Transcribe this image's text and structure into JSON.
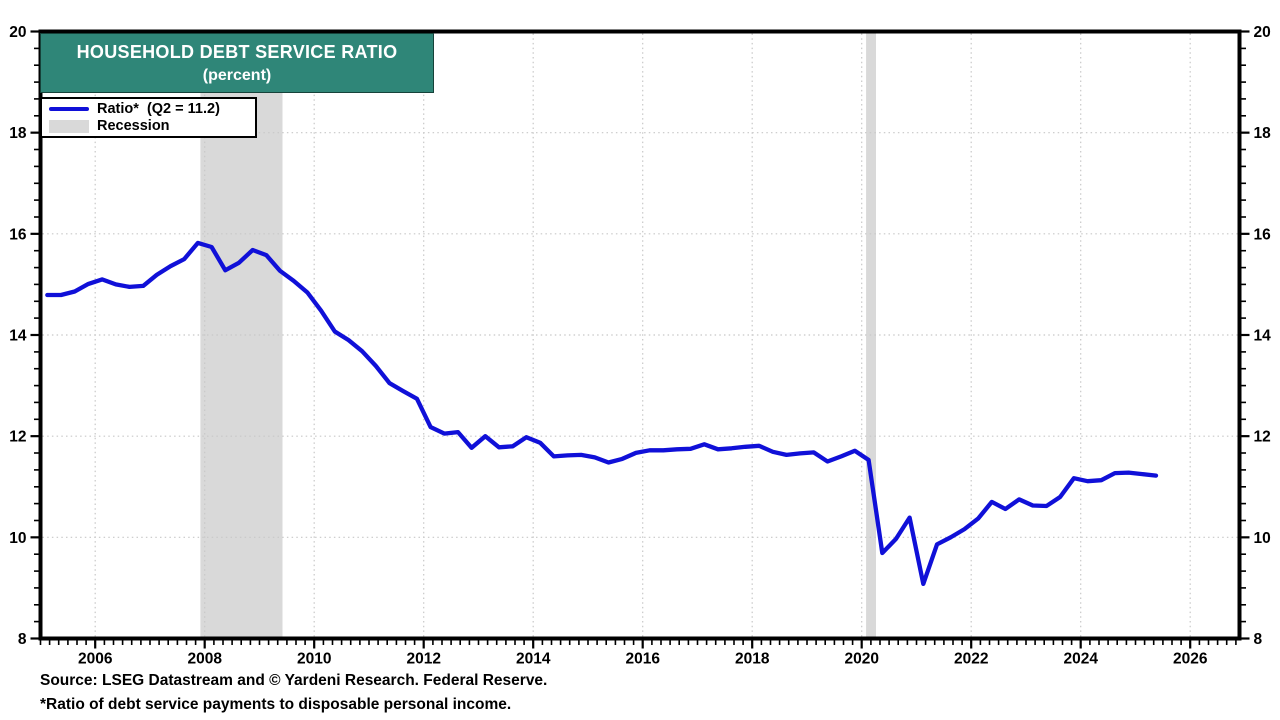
{
  "header": {
    "title": "HOUSEHOLD DEBT SERVICE RATIO",
    "subtitle": "(percent)"
  },
  "legend": {
    "ratio": {
      "label": "Ratio*  (Q2 = 11.2)",
      "swatch": "line"
    },
    "recession": {
      "label": "Recession",
      "swatch": "band"
    }
  },
  "footer": {
    "source": "Source: LSEG Datastream and © Yardeni Research. Federal Reserve.",
    "footnote": "*Ratio of debt service payments to disposable personal income."
  },
  "colors": {
    "header_bg": "#2f8678",
    "header_border": "#16423a",
    "header_text": "#ffffff",
    "line": "#1010d8",
    "recession": "#d9d9d9",
    "grid": "#c8c8c8",
    "axis": "#000000",
    "background": "#ffffff"
  },
  "chart_data": {
    "type": "line",
    "title": "HOUSEHOLD DEBT SERVICE RATIO (percent)",
    "x_range": [
      2005,
      2026.9
    ],
    "y_range": [
      8,
      20
    ],
    "x_major_ticks": [
      2006,
      2008,
      2010,
      2012,
      2014,
      2016,
      2018,
      2020,
      2022,
      2024,
      2026
    ],
    "y_major_ticks": [
      8,
      10,
      12,
      14,
      16,
      18,
      20
    ],
    "x_minor_step": 0.166667,
    "y_minor_step": 0.333333,
    "grid_style": "dotted",
    "legend_position": "top-left",
    "recession_bands": [
      [
        2007.92,
        2009.42
      ],
      [
        2020.08,
        2020.26
      ]
    ],
    "series": [
      {
        "name": "Household Debt Service Ratio",
        "unit": "percent of disposable personal income",
        "frequency": "quarterly",
        "last_point_label": "Q2 = 11.2",
        "x": [
          2005.125,
          2005.375,
          2005.625,
          2005.875,
          2006.125,
          2006.375,
          2006.625,
          2006.875,
          2007.125,
          2007.375,
          2007.625,
          2007.875,
          2008.125,
          2008.375,
          2008.625,
          2008.875,
          2009.125,
          2009.375,
          2009.625,
          2009.875,
          2010.125,
          2010.375,
          2010.625,
          2010.875,
          2011.125,
          2011.375,
          2011.625,
          2011.875,
          2012.125,
          2012.375,
          2012.625,
          2012.875,
          2013.125,
          2013.375,
          2013.625,
          2013.875,
          2014.125,
          2014.375,
          2014.625,
          2014.875,
          2015.125,
          2015.375,
          2015.625,
          2015.875,
          2016.125,
          2016.375,
          2016.625,
          2016.875,
          2017.125,
          2017.375,
          2017.625,
          2017.875,
          2018.125,
          2018.375,
          2018.625,
          2018.875,
          2019.125,
          2019.375,
          2019.625,
          2019.875,
          2020.125,
          2020.375,
          2020.625,
          2020.875,
          2021.125,
          2021.375,
          2021.625,
          2021.875,
          2022.125,
          2022.375,
          2022.625,
          2022.875,
          2023.125,
          2023.375,
          2023.625,
          2023.875,
          2024.125,
          2024.375,
          2024.625,
          2024.875,
          2025.125,
          2025.375
        ],
        "values": [
          14.79,
          14.79,
          14.86,
          15.01,
          15.1,
          15.0,
          14.95,
          14.97,
          15.19,
          15.36,
          15.5,
          15.82,
          15.74,
          15.28,
          15.43,
          15.68,
          15.58,
          15.27,
          15.07,
          14.84,
          14.48,
          14.07,
          13.9,
          13.68,
          13.39,
          13.05,
          12.89,
          12.74,
          12.18,
          12.05,
          12.08,
          11.77,
          12.0,
          11.78,
          11.8,
          11.98,
          11.87,
          11.6,
          11.62,
          11.63,
          11.58,
          11.48,
          11.55,
          11.67,
          11.72,
          11.72,
          11.74,
          11.75,
          11.84,
          11.74,
          11.76,
          11.79,
          11.81,
          11.69,
          11.63,
          11.66,
          11.68,
          11.5,
          11.6,
          11.71,
          11.53,
          9.69,
          9.97,
          10.39,
          9.08,
          9.86,
          10.0,
          10.16,
          10.37,
          10.7,
          10.56,
          10.75,
          10.63,
          10.62,
          10.8,
          11.17,
          11.11,
          11.13,
          11.27,
          11.28,
          11.25,
          11.22
        ]
      }
    ]
  }
}
